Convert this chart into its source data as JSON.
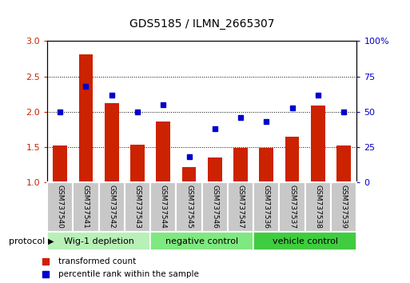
{
  "title": "GDS5185 / ILMN_2665307",
  "samples": [
    "GSM737540",
    "GSM737541",
    "GSM737542",
    "GSM737543",
    "GSM737544",
    "GSM737545",
    "GSM737546",
    "GSM737547",
    "GSM737536",
    "GSM737537",
    "GSM737538",
    "GSM737539"
  ],
  "red_bars": [
    1.52,
    2.81,
    2.12,
    1.54,
    1.86,
    1.22,
    1.35,
    1.49,
    1.49,
    1.65,
    2.09,
    1.52
  ],
  "blue_dots": [
    50,
    68,
    62,
    50,
    55,
    18,
    38,
    46,
    43,
    53,
    62,
    50
  ],
  "groups": [
    {
      "label": "Wig-1 depletion",
      "start": 0,
      "end": 3,
      "color": "#b8f0b8"
    },
    {
      "label": "negative control",
      "start": 4,
      "end": 7,
      "color": "#80e880"
    },
    {
      "label": "vehicle control",
      "start": 8,
      "end": 11,
      "color": "#40cc40"
    }
  ],
  "ylim_left": [
    1.0,
    3.0
  ],
  "ylim_right": [
    0,
    100
  ],
  "yticks_left": [
    1.0,
    1.5,
    2.0,
    2.5,
    3.0
  ],
  "yticks_right": [
    0,
    25,
    50,
    75,
    100
  ],
  "bar_color": "#cc2200",
  "dot_color": "#0000cc",
  "bar_bottom": 1.0,
  "legend_red": "transformed count",
  "legend_blue": "percentile rank within the sample",
  "protocol_label": "protocol",
  "sample_box_color": "#c8c8c8"
}
